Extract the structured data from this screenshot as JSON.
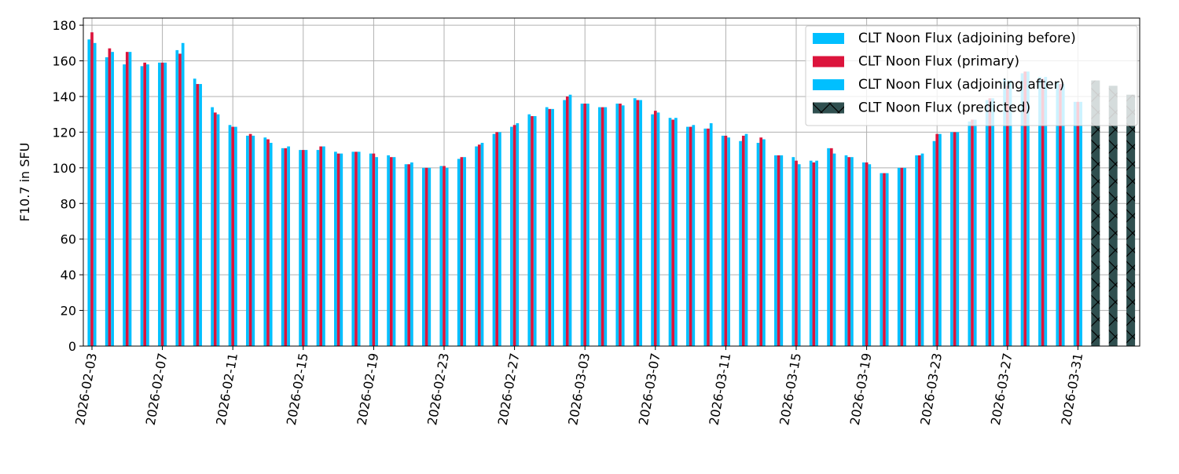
{
  "chart_data": {
    "type": "bar",
    "ylabel": "F10.7 in SFU",
    "xlabel": "",
    "ylim": [
      0,
      184
    ],
    "yticks": [
      0,
      20,
      40,
      60,
      80,
      100,
      120,
      140,
      160,
      180
    ],
    "xtick_labels": [
      "2026-02-03",
      "2026-02-07",
      "2026-02-11",
      "2026-02-15",
      "2026-02-19",
      "2026-02-23",
      "2026-02-27",
      "2026-03-03",
      "2026-03-07",
      "2026-03-11",
      "2026-03-15",
      "2026-03-19",
      "2026-03-23",
      "2026-03-27",
      "2026-03-31"
    ],
    "grid": true,
    "legend_position": "top-right",
    "start_date": "2026-02-03",
    "series": [
      {
        "name": "CLT Noon Flux (adjoining before)",
        "color": "#00bfff",
        "hatch": false,
        "values": [
          172,
          162,
          158,
          157,
          159,
          166,
          150,
          134,
          124,
          118,
          117,
          111,
          110,
          110,
          109,
          109,
          108,
          107,
          102,
          100,
          101,
          105,
          112,
          119,
          123,
          130,
          134,
          138,
          136,
          134,
          136,
          139,
          130,
          128,
          123,
          122,
          118,
          115,
          114,
          107,
          106,
          104,
          111,
          107,
          103,
          97,
          100,
          107,
          115,
          120,
          126,
          138,
          150,
          153,
          151,
          148,
          137,
          null,
          null,
          null
        ]
      },
      {
        "name": "CLT Noon Flux (primary)",
        "color": "#dc143c",
        "hatch": false,
        "values": [
          176,
          167,
          165,
          159,
          159,
          164,
          147,
          131,
          123,
          119,
          116,
          111,
          110,
          112,
          108,
          109,
          108,
          106,
          102,
          100,
          101,
          106,
          113,
          120,
          124,
          129,
          133,
          140,
          136,
          134,
          136,
          138,
          132,
          127,
          123,
          122,
          118,
          118,
          117,
          107,
          104,
          103,
          111,
          106,
          103,
          97,
          100,
          107,
          119,
          120,
          127,
          139,
          146,
          154,
          150,
          147,
          137,
          null,
          null,
          null
        ]
      },
      {
        "name": "CLT Noon Flux (adjoining after)",
        "color": "#00bfff",
        "hatch": false,
        "values": [
          170,
          165,
          165,
          158,
          159,
          170,
          147,
          130,
          123,
          118,
          114,
          112,
          110,
          112,
          108,
          109,
          106,
          106,
          103,
          100,
          100,
          106,
          114,
          120,
          125,
          129,
          133,
          141,
          136,
          134,
          135,
          138,
          131,
          128,
          124,
          125,
          117,
          119,
          116,
          107,
          102,
          104,
          108,
          106,
          102,
          97,
          100,
          108,
          119,
          120,
          127,
          139,
          149,
          154,
          151,
          147,
          137,
          null,
          null,
          null
        ]
      },
      {
        "name": "CLT Noon Flux (predicted)",
        "color": "#2f4f4f",
        "hatch": true,
        "values": [
          null,
          null,
          null,
          null,
          null,
          null,
          null,
          null,
          null,
          null,
          null,
          null,
          null,
          null,
          null,
          null,
          null,
          null,
          null,
          null,
          null,
          null,
          null,
          null,
          null,
          null,
          null,
          null,
          null,
          null,
          null,
          null,
          null,
          null,
          null,
          null,
          null,
          null,
          null,
          null,
          null,
          null,
          null,
          null,
          null,
          null,
          null,
          null,
          null,
          null,
          null,
          null,
          null,
          null,
          null,
          null,
          null,
          149,
          146,
          141
        ]
      }
    ]
  }
}
